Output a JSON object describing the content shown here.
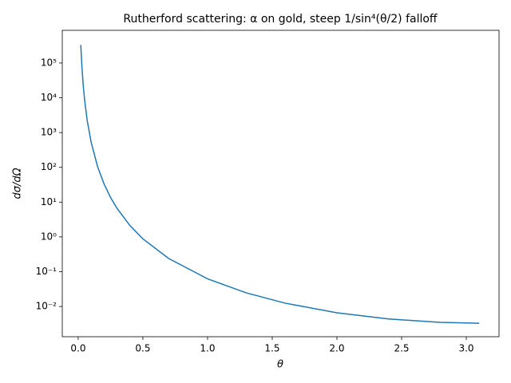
{
  "chart_data": {
    "type": "line",
    "title": "Rutherford scattering: α on gold, steep 1/sin⁴(θ/2) falloff",
    "xlabel": "θ",
    "ylabel": "dσ/dΩ",
    "yscale": "log",
    "x": [
      0.02,
      0.03,
      0.04,
      0.05,
      0.07,
      0.1,
      0.15,
      0.2,
      0.25,
      0.3,
      0.4,
      0.5,
      0.7,
      1.0,
      1.3,
      1.6,
      2.0,
      2.4,
      2.8,
      3.1
    ],
    "series": [
      {
        "name": "dσ/dΩ",
        "color": "#1f77b4",
        "values": [
          330000,
          65200,
          20600,
          8450,
          2200,
          529,
          104.7,
          33.2,
          13.66,
          6.62,
          2.12,
          0.881,
          0.239,
          0.0625,
          0.0246,
          0.01246,
          0.00658,
          0.00437,
          0.0035,
          0.0033
        ]
      }
    ],
    "xlim": [
      -0.123,
      3.253
    ],
    "xticks": [
      {
        "value": 0,
        "label": "0.0"
      },
      {
        "value": 0.5,
        "label": "0.5"
      },
      {
        "value": 1,
        "label": "1.0"
      },
      {
        "value": 1.5,
        "label": "1.5"
      },
      {
        "value": 2,
        "label": "2.0"
      },
      {
        "value": 2.5,
        "label": "2.5"
      },
      {
        "value": 3,
        "label": "3.0"
      }
    ],
    "ylim": [
      0.00135,
      870000
    ],
    "yticks": [
      {
        "value": 0.01,
        "label": "10⁻²"
      },
      {
        "value": 0.1,
        "label": "10⁻¹"
      },
      {
        "value": 1,
        "label": "10⁰"
      },
      {
        "value": 10,
        "label": "10¹"
      },
      {
        "value": 100,
        "label": "10²"
      },
      {
        "value": 1000,
        "label": "10³"
      },
      {
        "value": 10000,
        "label": "10⁴"
      },
      {
        "value": 100000,
        "label": "10⁵"
      }
    ]
  }
}
